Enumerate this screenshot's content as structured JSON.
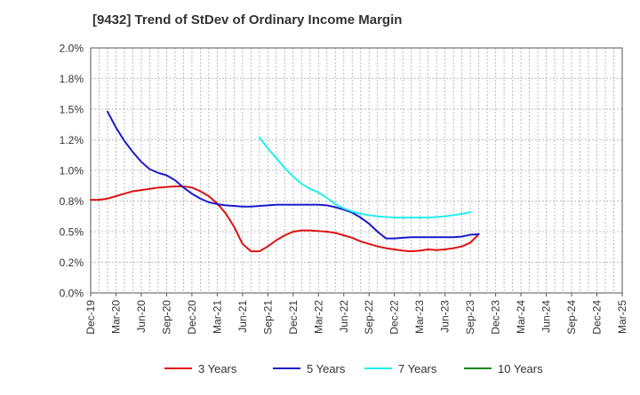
{
  "title": "[9432]  Trend of StDev of Ordinary Income Margin",
  "chart_data": {
    "type": "line",
    "title": "[9432]  Trend of StDev of Ordinary Income Margin",
    "xlabel": "",
    "ylabel": "",
    "x_tick_labels": [
      "Dec-19",
      "Mar-20",
      "Jun-20",
      "Sep-20",
      "Dec-20",
      "Mar-21",
      "Jun-21",
      "Sep-21",
      "Dec-21",
      "Mar-22",
      "Jun-22",
      "Sep-22",
      "Dec-22",
      "Mar-23",
      "Jun-23",
      "Sep-23",
      "Dec-23",
      "Mar-24",
      "Jun-24",
      "Sep-24",
      "Dec-24",
      "Mar-25"
    ],
    "y_tick_labels": [
      "0.0%",
      "0.2%",
      "0.5%",
      "0.8%",
      "1.0%",
      "1.2%",
      "1.5%",
      "1.8%",
      "2.0%"
    ],
    "ylim": [
      0,
      2.0
    ],
    "grid": true,
    "legend_position": "bottom",
    "series": [
      {
        "name": "3 Years",
        "color": "#dd1111",
        "start_month": "Dec-19",
        "values": [
          0.76,
          0.76,
          0.77,
          0.79,
          0.81,
          0.83,
          0.84,
          0.85,
          0.86,
          0.865,
          0.87,
          0.87,
          0.86,
          0.83,
          0.79,
          0.73,
          0.65,
          0.54,
          0.4,
          0.34,
          0.34,
          0.38,
          0.43,
          0.47,
          0.5,
          0.51,
          0.51,
          0.505,
          0.5,
          0.49,
          0.47,
          0.45,
          0.42,
          0.4,
          0.38,
          0.365,
          0.355,
          0.345,
          0.34,
          0.345,
          0.355,
          0.35,
          0.355,
          0.365,
          0.38,
          0.41,
          0.48
        ]
      },
      {
        "name": "5 Years",
        "color": "#1a1acc",
        "start_month": "Dec-19",
        "values": [
          null,
          null,
          1.48,
          1.35,
          1.24,
          1.15,
          1.07,
          1.01,
          0.98,
          0.96,
          0.92,
          0.86,
          0.81,
          0.77,
          0.74,
          0.725,
          0.715,
          0.71,
          0.705,
          0.705,
          0.71,
          0.715,
          0.72,
          0.72,
          0.72,
          0.72,
          0.72,
          0.72,
          0.715,
          0.7,
          0.68,
          0.655,
          0.615,
          0.565,
          0.5,
          0.445,
          0.445,
          0.45,
          0.455,
          0.455,
          0.455,
          0.455,
          0.455,
          0.455,
          0.46,
          0.475,
          0.48
        ]
      },
      {
        "name": "7 Years",
        "color": "#22eeee",
        "start_month": "Dec-19",
        "values": [
          null,
          null,
          null,
          null,
          null,
          null,
          null,
          null,
          null,
          null,
          null,
          null,
          null,
          null,
          null,
          null,
          null,
          null,
          null,
          null,
          1.27,
          1.18,
          1.1,
          1.02,
          0.95,
          0.89,
          0.85,
          0.82,
          0.775,
          0.725,
          0.69,
          0.665,
          0.645,
          0.635,
          0.625,
          0.62,
          0.615,
          0.615,
          0.615,
          0.615,
          0.615,
          0.62,
          0.625,
          0.635,
          0.645,
          0.66,
          null
        ]
      },
      {
        "name": "10 Years",
        "color": "#118811",
        "start_month": "Dec-19",
        "values": []
      }
    ]
  }
}
